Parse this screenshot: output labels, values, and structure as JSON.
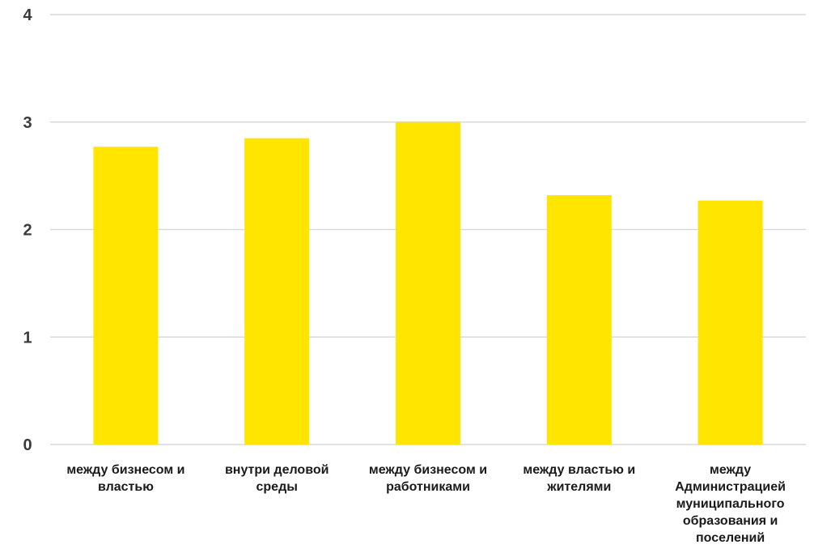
{
  "chart_data": {
    "type": "bar",
    "title": "",
    "xlabel": "",
    "ylabel": "",
    "categories": [
      [
        "между бизнесом и",
        "властью"
      ],
      [
        "внутри деловой",
        "среды"
      ],
      [
        "между бизнесом и",
        "работниками"
      ],
      [
        "между властью и",
        "жителями"
      ],
      [
        "между",
        "Администрацией",
        "муниципального",
        "образования и",
        "поселений"
      ]
    ],
    "values": [
      2.77,
      2.85,
      3.0,
      2.32,
      2.27
    ],
    "ylim": [
      0,
      4
    ],
    "yticks": [
      "0",
      "1",
      "2",
      "3",
      "4"
    ],
    "grid": true,
    "legend": "none",
    "bar_color": "#FFE500"
  }
}
